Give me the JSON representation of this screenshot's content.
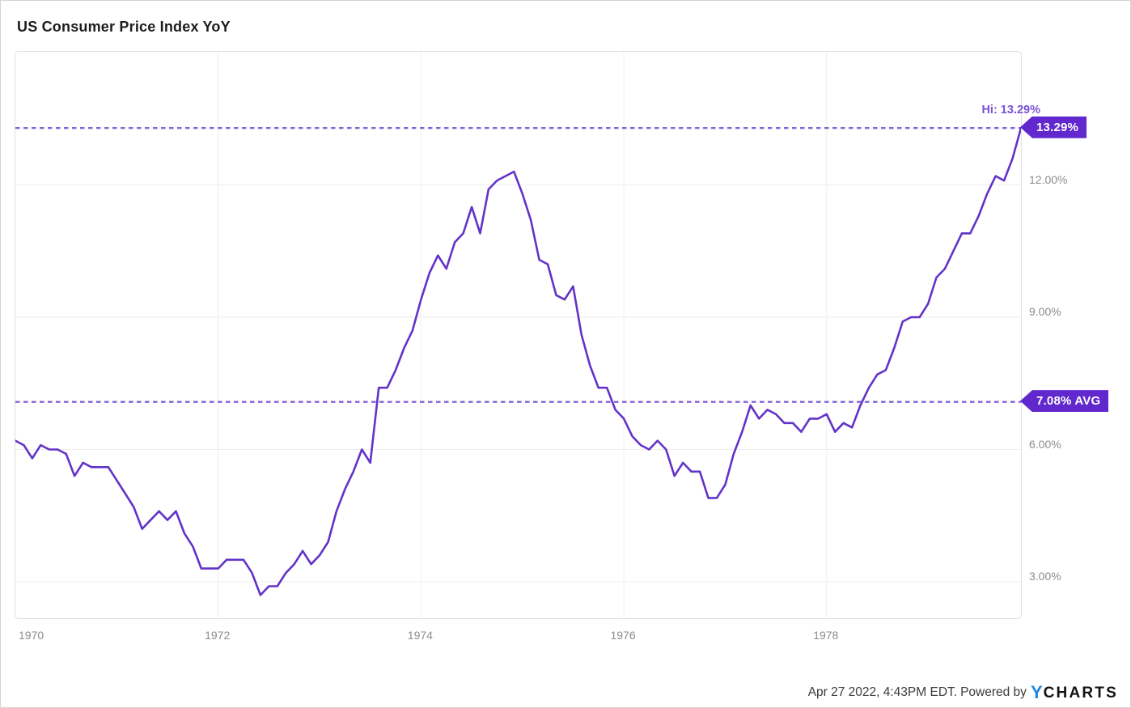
{
  "title": "US Consumer Price Index YoY",
  "chart_data": {
    "type": "line",
    "series_name": "US Consumer Price Index YoY",
    "unit": "%",
    "x_range": {
      "start": "1970-01",
      "end": "1979-12",
      "frequency": "monthly"
    },
    "x": [
      "1970-01",
      "1970-02",
      "1970-03",
      "1970-04",
      "1970-05",
      "1970-06",
      "1970-07",
      "1970-08",
      "1970-09",
      "1970-10",
      "1970-11",
      "1970-12",
      "1971-01",
      "1971-02",
      "1971-03",
      "1971-04",
      "1971-05",
      "1971-06",
      "1971-07",
      "1971-08",
      "1971-09",
      "1971-10",
      "1971-11",
      "1971-12",
      "1972-01",
      "1972-02",
      "1972-03",
      "1972-04",
      "1972-05",
      "1972-06",
      "1972-07",
      "1972-08",
      "1972-09",
      "1972-10",
      "1972-11",
      "1972-12",
      "1973-01",
      "1973-02",
      "1973-03",
      "1973-04",
      "1973-05",
      "1973-06",
      "1973-07",
      "1973-08",
      "1973-09",
      "1973-10",
      "1973-11",
      "1973-12",
      "1974-01",
      "1974-02",
      "1974-03",
      "1974-04",
      "1974-05",
      "1974-06",
      "1974-07",
      "1974-08",
      "1974-09",
      "1974-10",
      "1974-11",
      "1974-12",
      "1975-01",
      "1975-02",
      "1975-03",
      "1975-04",
      "1975-05",
      "1975-06",
      "1975-07",
      "1975-08",
      "1975-09",
      "1975-10",
      "1975-11",
      "1975-12",
      "1976-01",
      "1976-02",
      "1976-03",
      "1976-04",
      "1976-05",
      "1976-06",
      "1976-07",
      "1976-08",
      "1976-09",
      "1976-10",
      "1976-11",
      "1976-12",
      "1977-01",
      "1977-02",
      "1977-03",
      "1977-04",
      "1977-05",
      "1977-06",
      "1977-07",
      "1977-08",
      "1977-09",
      "1977-10",
      "1977-11",
      "1977-12",
      "1978-01",
      "1978-02",
      "1978-03",
      "1978-04",
      "1978-05",
      "1978-06",
      "1978-07",
      "1978-08",
      "1978-09",
      "1978-10",
      "1978-11",
      "1978-12",
      "1979-01",
      "1979-02",
      "1979-03",
      "1979-04",
      "1979-05",
      "1979-06",
      "1979-07",
      "1979-08",
      "1979-09",
      "1979-10",
      "1979-11",
      "1979-12"
    ],
    "values": [
      6.2,
      6.1,
      5.8,
      6.1,
      6.0,
      6.0,
      5.9,
      5.4,
      5.7,
      5.6,
      5.6,
      5.6,
      5.3,
      5.0,
      4.7,
      4.2,
      4.4,
      4.6,
      4.4,
      4.6,
      4.1,
      3.8,
      3.3,
      3.3,
      3.3,
      3.5,
      3.5,
      3.5,
      3.2,
      2.7,
      2.9,
      2.9,
      3.2,
      3.4,
      3.7,
      3.4,
      3.6,
      3.9,
      4.6,
      5.1,
      5.5,
      6.0,
      5.7,
      7.4,
      7.4,
      7.8,
      8.3,
      8.7,
      9.4,
      10.0,
      10.4,
      10.1,
      10.7,
      10.9,
      11.5,
      10.9,
      11.9,
      12.1,
      12.2,
      12.3,
      11.8,
      11.2,
      10.3,
      10.2,
      9.5,
      9.4,
      9.7,
      8.6,
      7.9,
      7.4,
      7.4,
      6.9,
      6.7,
      6.3,
      6.1,
      6.0,
      6.2,
      6.0,
      5.4,
      5.7,
      5.5,
      5.5,
      4.9,
      4.9,
      5.2,
      5.9,
      6.4,
      7.0,
      6.7,
      6.9,
      6.8,
      6.6,
      6.6,
      6.4,
      6.7,
      6.7,
      6.8,
      6.4,
      6.6,
      6.5,
      7.0,
      7.4,
      7.7,
      7.8,
      8.3,
      8.9,
      9.0,
      9.0,
      9.3,
      9.9,
      10.1,
      10.5,
      10.9,
      10.9,
      11.3,
      11.8,
      12.2,
      12.1,
      12.6,
      13.29
    ],
    "y_axis": {
      "side": "right",
      "ticks": [
        {
          "label": "12.00%",
          "value": 12
        },
        {
          "label": "9.00%",
          "value": 9
        },
        {
          "label": "6.00%",
          "value": 6
        },
        {
          "label": "3.00%",
          "value": 3
        }
      ]
    },
    "x_axis": {
      "ticks": [
        {
          "label": "1970",
          "month_index": 0
        },
        {
          "label": "1972",
          "month_index": 24
        },
        {
          "label": "1974",
          "month_index": 48
        },
        {
          "label": "1976",
          "month_index": 72
        },
        {
          "label": "1978",
          "month_index": 96
        }
      ]
    },
    "high": {
      "label": "Hi: 13.29%",
      "badge": "13.29%",
      "value": 13.29
    },
    "average": {
      "badge": "7.08% AVG",
      "value": 7.08
    },
    "grid": true,
    "legend": "none",
    "colors": {
      "line": "#6333c8",
      "dashed_reference": "#8363d9",
      "badge_background": "#6128cd",
      "badge_text": "#ffffff",
      "hi_label_text": "#7b52d8",
      "axis_text": "#8c8c8c",
      "gridline": "#eeeeee"
    }
  },
  "footer": {
    "timestamp": "Apr 27 2022, 4:43PM EDT.",
    "powered_by": "Powered by",
    "brand": {
      "y_letter": "Y",
      "name": "CHARTS"
    }
  }
}
